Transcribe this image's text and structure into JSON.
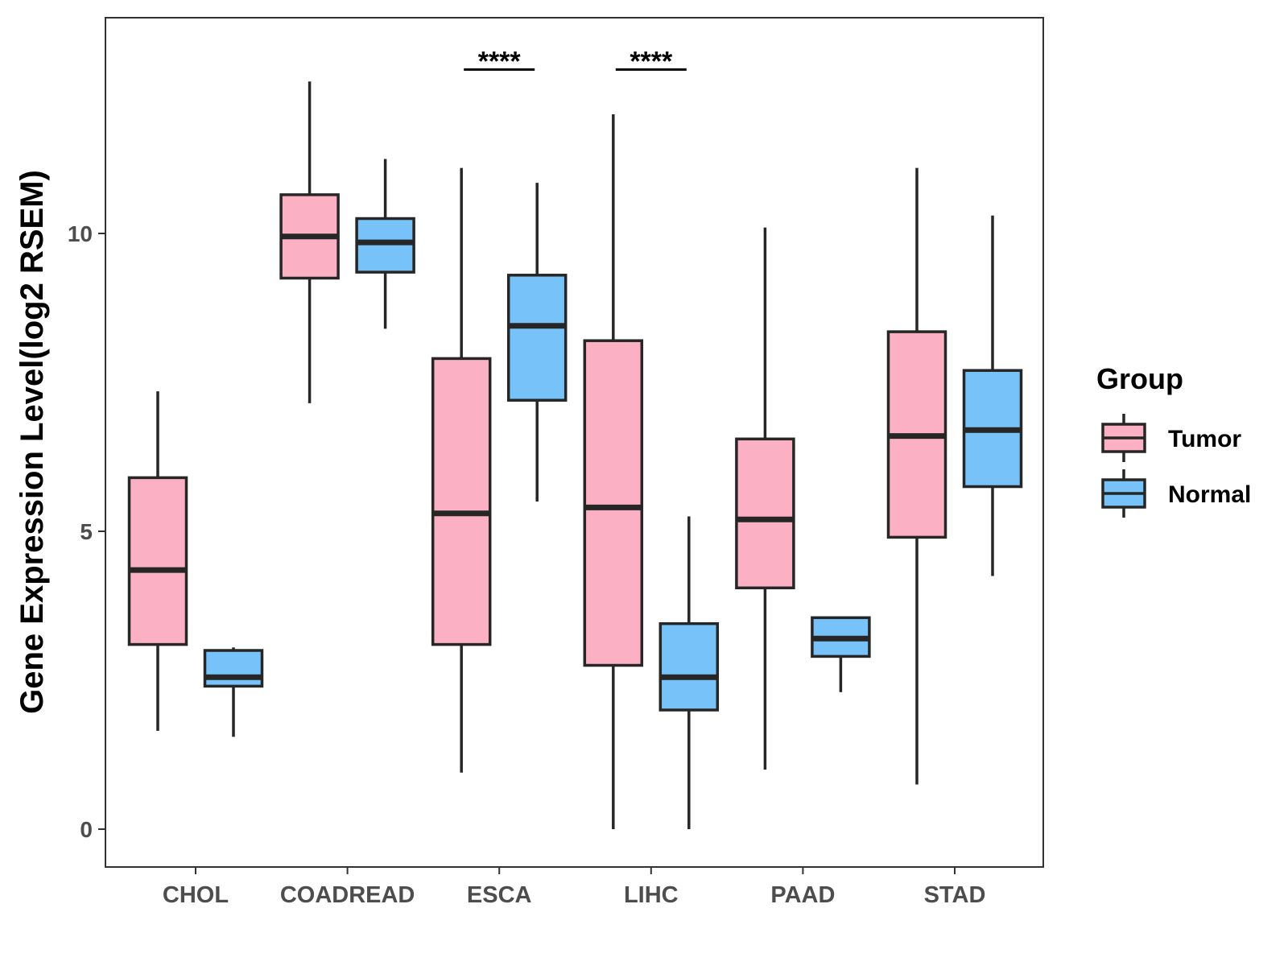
{
  "chart_data": {
    "type": "box",
    "title": "",
    "xlabel": "",
    "ylabel": "Gene Expression Level(log2 RSEM)",
    "ylim": [
      -0.65,
      13.6
    ],
    "yticks": [
      0,
      5,
      10
    ],
    "grid": false,
    "categories": [
      "CHOL",
      "COADREAD",
      "ESCA",
      "LIHC",
      "PAAD",
      "STAD"
    ],
    "legend": {
      "title": "Group",
      "position": "right",
      "entries": [
        {
          "name": "Tumor",
          "color": "#FBB1C3"
        },
        {
          "name": "Normal",
          "color": "#77C2F8"
        }
      ]
    },
    "series": [
      {
        "name": "Tumor",
        "color": "#FBB1C3",
        "boxes": [
          {
            "whisker_low": 1.65,
            "q1": 3.1,
            "median": 4.35,
            "q3": 5.9,
            "whisker_high": 7.35
          },
          {
            "whisker_low": 7.15,
            "q1": 9.25,
            "median": 9.95,
            "q3": 10.65,
            "whisker_high": 12.55
          },
          {
            "whisker_low": 0.95,
            "q1": 3.1,
            "median": 5.3,
            "q3": 7.9,
            "whisker_high": 11.1
          },
          {
            "whisker_low": 0.0,
            "q1": 2.75,
            "median": 5.4,
            "q3": 8.2,
            "whisker_high": 12.0
          },
          {
            "whisker_low": 1.0,
            "q1": 4.05,
            "median": 5.2,
            "q3": 6.55,
            "whisker_high": 10.1
          },
          {
            "whisker_low": 0.75,
            "q1": 4.9,
            "median": 6.6,
            "q3": 8.35,
            "whisker_high": 11.1
          }
        ]
      },
      {
        "name": "Normal",
        "color": "#77C2F8",
        "boxes": [
          {
            "whisker_low": 1.55,
            "q1": 2.4,
            "median": 2.55,
            "q3": 3.0,
            "whisker_high": 3.05
          },
          {
            "whisker_low": 8.4,
            "q1": 9.35,
            "median": 9.85,
            "q3": 10.25,
            "whisker_high": 11.25
          },
          {
            "whisker_low": 5.5,
            "q1": 7.2,
            "median": 8.45,
            "q3": 9.3,
            "whisker_high": 10.85
          },
          {
            "whisker_low": 0.0,
            "q1": 2.0,
            "median": 2.55,
            "q3": 3.45,
            "whisker_high": 5.25
          },
          {
            "whisker_low": 2.3,
            "q1": 2.9,
            "median": 3.2,
            "q3": 3.55,
            "whisker_high": 3.55
          },
          {
            "whisker_low": 4.25,
            "q1": 5.75,
            "median": 6.7,
            "q3": 7.7,
            "whisker_high": 10.3
          }
        ]
      }
    ],
    "significance": [
      {
        "category": "ESCA",
        "label": "****",
        "y": 12.9
      },
      {
        "category": "LIHC",
        "label": "****",
        "y": 12.9
      }
    ]
  }
}
